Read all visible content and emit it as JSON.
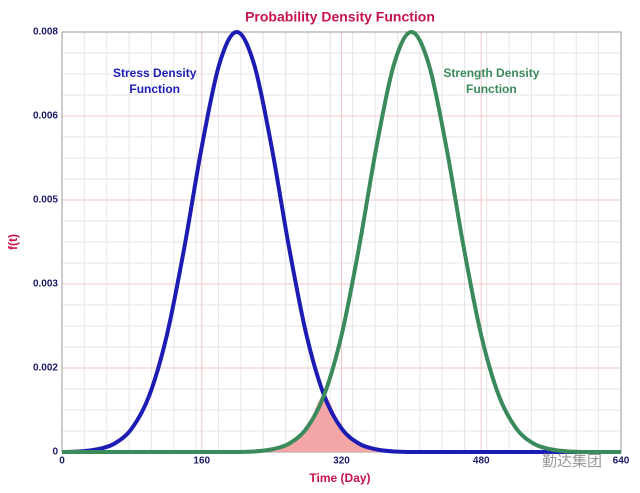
{
  "chart_data": {
    "type": "line",
    "title": "Probability Density Function",
    "xlabel": "Time (Day)",
    "ylabel": "f(t)",
    "x": [
      0,
      20,
      40,
      60,
      80,
      100,
      120,
      140,
      160,
      180,
      200,
      220,
      240,
      260,
      280,
      300,
      320,
      340,
      360,
      380,
      400,
      420,
      440,
      460,
      480,
      500,
      520,
      540,
      560,
      580,
      600,
      620,
      640
    ],
    "series": [
      {
        "name": "Stress Density Function",
        "color": "#1c1cb4",
        "values": [
          0,
          1e-05,
          5e-05,
          0.00016,
          0.00045,
          0.00108,
          0.00222,
          0.00389,
          0.00581,
          0.00738,
          0.008,
          0.00738,
          0.00581,
          0.00389,
          0.00222,
          0.00108,
          0.00045,
          0.00016,
          5e-05,
          1e-05,
          0,
          0,
          0,
          0,
          0,
          0,
          0,
          0,
          0,
          0,
          0,
          0,
          0
        ]
      },
      {
        "name": "Strength Density Function",
        "color": "#3b8a5c",
        "values": [
          0,
          0,
          0,
          0,
          0,
          0,
          0,
          0,
          0,
          0,
          0,
          1e-05,
          5e-05,
          0.00016,
          0.00045,
          0.00108,
          0.00222,
          0.00389,
          0.00581,
          0.00738,
          0.008,
          0.00738,
          0.00581,
          0.00389,
          0.00222,
          0.00108,
          0.00045,
          0.00016,
          5e-05,
          1e-05,
          0,
          0,
          0
        ]
      }
    ],
    "overlap_color": "#f4a6a6",
    "xlim": [
      0,
      640
    ],
    "xticks": [
      0,
      160,
      320,
      480,
      640
    ],
    "ylim": [
      0,
      0.008
    ],
    "yticks": [
      0,
      {
        "value": 0.0016,
        "label": "0.002"
      },
      {
        "value": 0.0032,
        "label": "0.003"
      },
      {
        "value": 0.0048,
        "label": "0.005"
      },
      {
        "value": 0.0064,
        "label": "0.006"
      },
      0.008
    ],
    "grid": true,
    "watermark": "勤达集团"
  }
}
